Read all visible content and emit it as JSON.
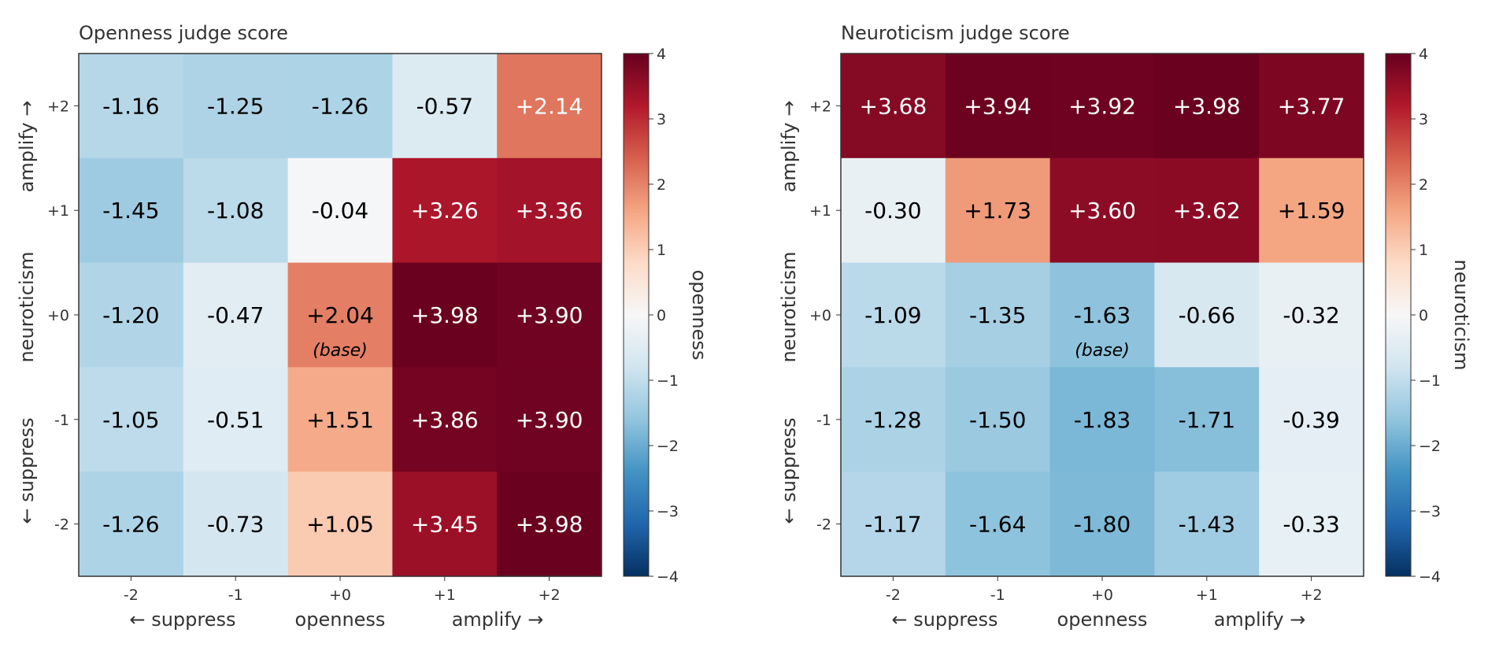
{
  "chart_data": [
    {
      "type": "heatmap",
      "title": "Openness judge score",
      "x_ticks": [
        "-2",
        "-1",
        "+0",
        "+1",
        "+2"
      ],
      "y_ticks": [
        "+2",
        "+1",
        "+0",
        "-1",
        "-2"
      ],
      "xlabel": {
        "left": "← suppress",
        "center": "openness",
        "right": "amplify →"
      },
      "ylabel": {
        "bottom": "← suppress",
        "center": "neuroticism",
        "top": "amplify →"
      },
      "values": [
        [
          -1.16,
          -1.25,
          -1.26,
          -0.57,
          2.14
        ],
        [
          -1.45,
          -1.08,
          -0.04,
          3.26,
          3.36
        ],
        [
          -1.2,
          -0.47,
          2.04,
          3.98,
          3.9
        ],
        [
          -1.05,
          -0.51,
          1.51,
          3.86,
          3.9
        ],
        [
          -1.26,
          -0.73,
          1.05,
          3.45,
          3.98
        ]
      ],
      "labels": [
        [
          "-1.16",
          "-1.25",
          "-1.26",
          "-0.57",
          "+2.14"
        ],
        [
          "-1.45",
          "-1.08",
          "-0.04",
          "+3.26",
          "+3.36"
        ],
        [
          "-1.20",
          "-0.47",
          "+2.04",
          "+3.98",
          "+3.90"
        ],
        [
          "-1.05",
          "-0.51",
          "+1.51",
          "+3.86",
          "+3.90"
        ],
        [
          "-1.26",
          "-0.73",
          "+1.05",
          "+3.45",
          "+3.98"
        ]
      ],
      "base_cell": {
        "row": 2,
        "col": 2,
        "label": "(base)"
      },
      "colorbar": {
        "label": "openness",
        "range": [
          -4,
          4
        ],
        "ticks": [
          "4",
          "3",
          "2",
          "1",
          "0",
          "−1",
          "−2",
          "−3",
          "−4"
        ],
        "colormap": "RdBu_r"
      }
    },
    {
      "type": "heatmap",
      "title": "Neuroticism judge score",
      "x_ticks": [
        "-2",
        "-1",
        "+0",
        "+1",
        "+2"
      ],
      "y_ticks": [
        "+2",
        "+1",
        "+0",
        "-1",
        "-2"
      ],
      "xlabel": {
        "left": "← suppress",
        "center": "openness",
        "right": "amplify →"
      },
      "ylabel": {
        "bottom": "← suppress",
        "center": "neuroticism",
        "top": "amplify →"
      },
      "values": [
        [
          3.68,
          3.94,
          3.92,
          3.98,
          3.77
        ],
        [
          -0.3,
          1.73,
          3.6,
          3.62,
          1.59
        ],
        [
          -1.09,
          -1.35,
          -1.63,
          -0.66,
          -0.32
        ],
        [
          -1.28,
          -1.5,
          -1.83,
          -1.71,
          -0.39
        ],
        [
          -1.17,
          -1.64,
          -1.8,
          -1.43,
          -0.33
        ]
      ],
      "labels": [
        [
          "+3.68",
          "+3.94",
          "+3.92",
          "+3.98",
          "+3.77"
        ],
        [
          "-0.30",
          "+1.73",
          "+3.60",
          "+3.62",
          "+1.59"
        ],
        [
          "-1.09",
          "-1.35",
          "-1.63",
          "-0.66",
          "-0.32"
        ],
        [
          "-1.28",
          "-1.50",
          "-1.83",
          "-1.71",
          "-0.39"
        ],
        [
          "-1.17",
          "-1.64",
          "-1.80",
          "-1.43",
          "-0.33"
        ]
      ],
      "base_cell": {
        "row": 2,
        "col": 2,
        "label": "(base)"
      },
      "colorbar": {
        "label": "neuroticism",
        "range": [
          -4,
          4
        ],
        "ticks": [
          "4",
          "3",
          "2",
          "1",
          "0",
          "−1",
          "−2",
          "−3",
          "−4"
        ],
        "colormap": "RdBu_r"
      }
    }
  ]
}
